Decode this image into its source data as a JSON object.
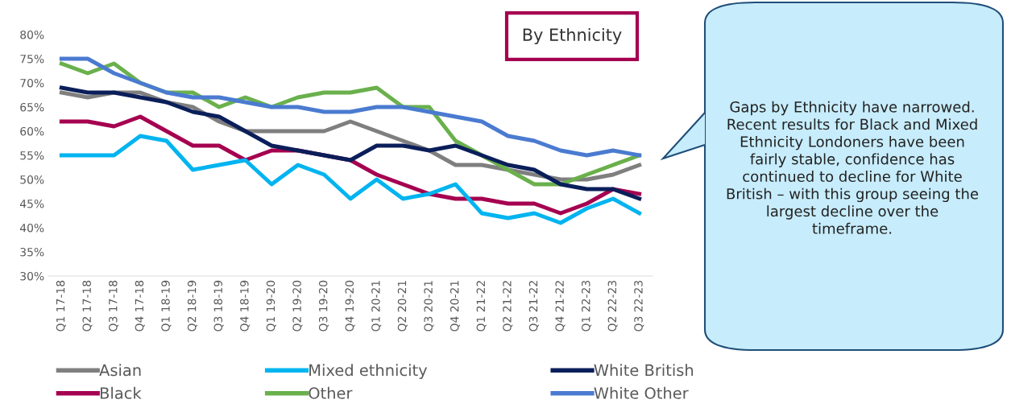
{
  "chart_data": {
    "type": "line",
    "title": "By Ethnicity",
    "categories": [
      "Q1 17-18",
      "Q2 17-18",
      "Q3 17-18",
      "Q4 17-18",
      "Q1 18-19",
      "Q2 18-19",
      "Q3 18-19",
      "Q4 18-19",
      "Q1 19-20",
      "Q2 19-20",
      "Q3 19-20",
      "Q4 19-20",
      "Q1 20-21",
      "Q2 20-21",
      "Q3 20-21",
      "Q4 20-21",
      "Q1 21-22",
      "Q2 21-22",
      "Q3 21-22",
      "Q4 21-22",
      "Q1 22-23",
      "Q2 22-23",
      "Q3 22-23"
    ],
    "series": [
      {
        "name": "Asian",
        "color": "#7f7f7f",
        "values": [
          68,
          67,
          68,
          68,
          66,
          65,
          62,
          60,
          60,
          60,
          60,
          62,
          60,
          58,
          56,
          53,
          53,
          52,
          51,
          50,
          50,
          51,
          53
        ]
      },
      {
        "name": "Black",
        "color": "#a50050",
        "values": [
          62,
          62,
          61,
          63,
          60,
          57,
          57,
          54,
          56,
          56,
          55,
          54,
          51,
          49,
          47,
          46,
          46,
          45,
          45,
          43,
          45,
          48,
          47
        ]
      },
      {
        "name": "Mixed ethnicity",
        "color": "#00b4f0",
        "values": [
          55,
          55,
          55,
          59,
          58,
          52,
          53,
          54,
          49,
          53,
          51,
          46,
          50,
          46,
          47,
          49,
          43,
          42,
          43,
          41,
          44,
          46,
          43
        ]
      },
      {
        "name": "Other",
        "color": "#6ab04c",
        "values": [
          74,
          72,
          74,
          70,
          68,
          68,
          65,
          67,
          65,
          67,
          68,
          68,
          69,
          65,
          65,
          58,
          55,
          52,
          49,
          49,
          51,
          53,
          55
        ]
      },
      {
        "name": "White British",
        "color": "#0a1e5a",
        "values": [
          69,
          68,
          68,
          67,
          66,
          64,
          63,
          60,
          57,
          56,
          55,
          54,
          57,
          57,
          56,
          57,
          55,
          53,
          52,
          49,
          48,
          48,
          46
        ]
      },
      {
        "name": "White Other",
        "color": "#4a7bd0",
        "values": [
          75,
          75,
          72,
          70,
          68,
          67,
          67,
          66,
          65,
          65,
          64,
          64,
          65,
          65,
          64,
          63,
          62,
          59,
          58,
          56,
          55,
          56,
          55
        ]
      }
    ],
    "ylim": [
      30,
      80
    ],
    "yticks": [
      {
        "value": 30,
        "label": "30%"
      },
      {
        "value": 35,
        "label": "35%"
      },
      {
        "value": 40,
        "label": "40%"
      },
      {
        "value": 45,
        "label": "45%"
      },
      {
        "value": 50,
        "label": "50%"
      },
      {
        "value": 55,
        "label": "55%"
      },
      {
        "value": 60,
        "label": "60%"
      },
      {
        "value": 65,
        "label": "65%"
      },
      {
        "value": 70,
        "label": "70%"
      },
      {
        "value": 75,
        "label": "75%"
      },
      {
        "value": 80,
        "label": "80%"
      }
    ],
    "grid": false,
    "legend": "bottom",
    "marker": "none",
    "line_style": "solid",
    "annotations": [
      "Gaps by Ethnicity have narrowed. Recent results for Black and Mixed Ethnicity Londoners have been fairly stable, confidence has continued to decline for White British – with this group seeing the largest decline over the timeframe."
    ]
  }
}
